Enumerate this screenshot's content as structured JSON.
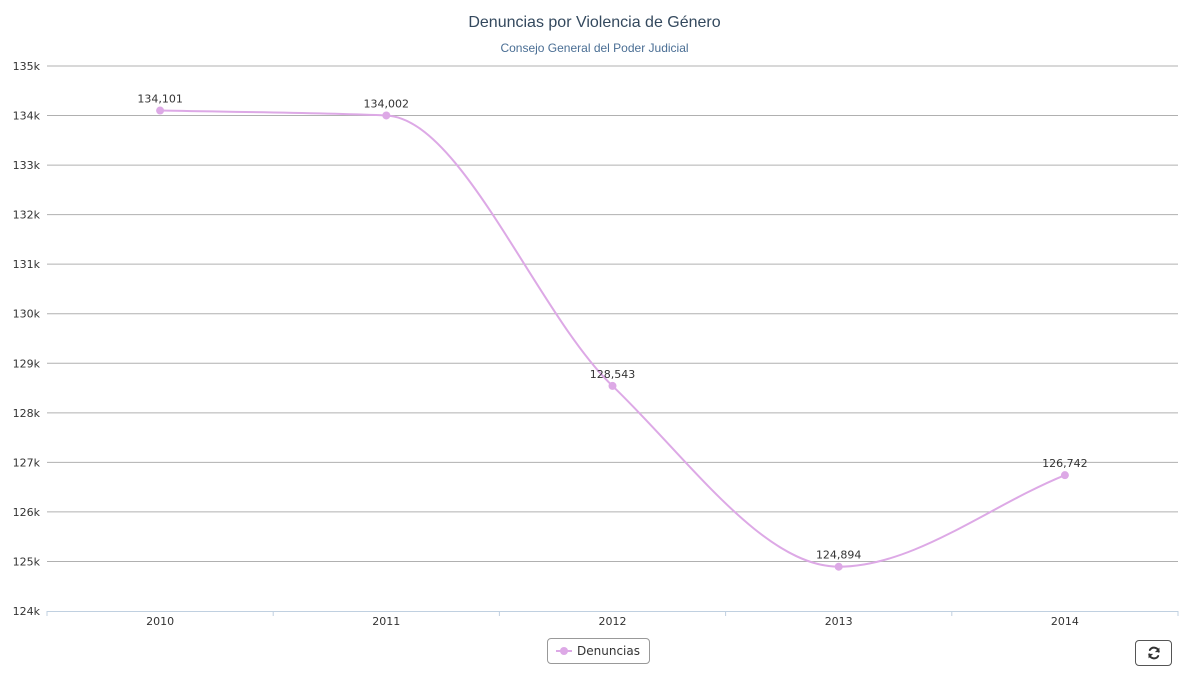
{
  "chart_data": {
    "type": "line",
    "title": "Denuncias por Violencia de Género",
    "subtitle": "Consejo General del Poder Judicial",
    "categories": [
      "2010",
      "2011",
      "2012",
      "2013",
      "2014"
    ],
    "series": [
      {
        "name": "Denuncias",
        "values": [
          134101,
          134002,
          128543,
          124894,
          126742
        ],
        "data_labels": [
          "134,101",
          "134,002",
          "128,543",
          "124,894",
          "126,742"
        ],
        "color": "#dda9e6"
      }
    ],
    "ylim": [
      124000,
      135000
    ],
    "yticks": [
      124000,
      125000,
      126000,
      127000,
      128000,
      129000,
      130000,
      131000,
      132000,
      133000,
      134000,
      135000
    ],
    "ytick_labels": [
      "124k",
      "125k",
      "126k",
      "127k",
      "128k",
      "129k",
      "130k",
      "131k",
      "132k",
      "133k",
      "134k",
      "135k"
    ],
    "grid": true,
    "legend_position": "bottom-center",
    "grid_color": "#b0b0b0",
    "axis_color": "#c0d0e0"
  },
  "controls": {
    "refresh_icon": "refresh-icon"
  }
}
